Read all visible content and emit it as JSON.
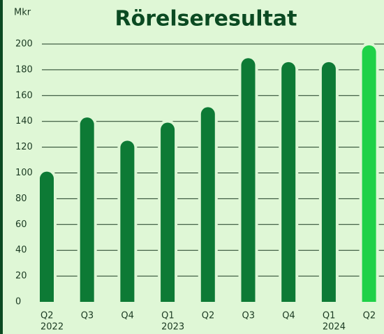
{
  "chart_data": {
    "type": "bar",
    "title": "Rörelseresultat",
    "y_axis_label": "Mkr",
    "categories": [
      [
        "Q2",
        "2022"
      ],
      [
        "Q3"
      ],
      [
        "Q4"
      ],
      [
        "Q1",
        "2023"
      ],
      [
        "Q2"
      ],
      [
        "Q3"
      ],
      [
        "Q4"
      ],
      [
        "Q1",
        "2024"
      ],
      [
        "Q2"
      ]
    ],
    "values": [
      101,
      143,
      125,
      139,
      151,
      189,
      186,
      186,
      199
    ],
    "colors": [
      "#0d7a35",
      "#0d7a35",
      "#0d7a35",
      "#0d7a35",
      "#0d7a35",
      "#0d7a35",
      "#0d7a35",
      "#0d7a35",
      "#1fd148"
    ],
    "ylim": [
      0,
      200
    ],
    "yticks": [
      0,
      20,
      40,
      60,
      80,
      100,
      120,
      140,
      160,
      180,
      200
    ],
    "grid": true
  }
}
